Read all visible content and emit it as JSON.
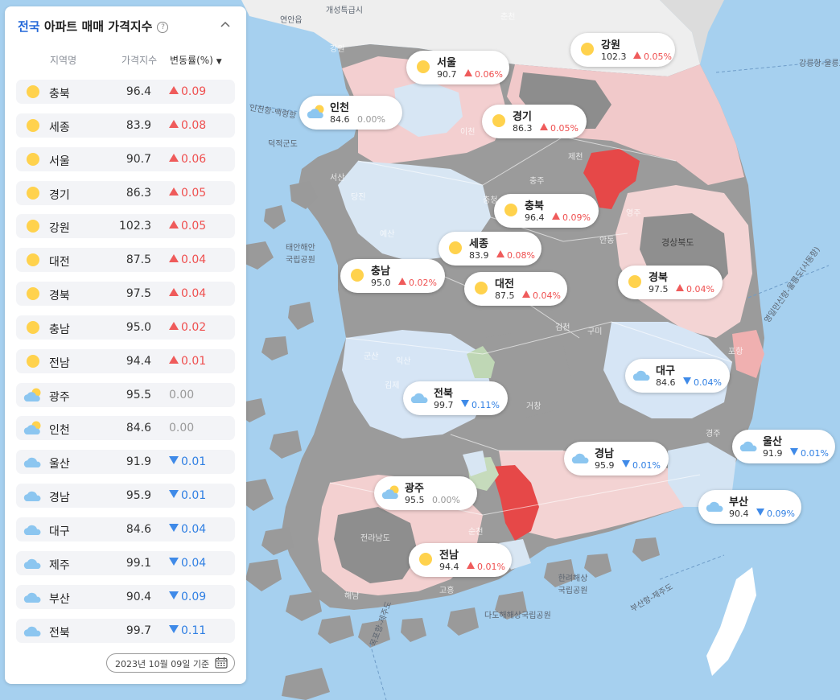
{
  "panel": {
    "title_prefix": "전국",
    "title_rest": " 아파트 매매 가격지수",
    "columns": {
      "region": "지역명",
      "index": "가격지수",
      "change": "변동률(%)"
    },
    "base_date": "2023년 10월 09일 기준",
    "rows": [
      {
        "name": "충북",
        "index": "96.4",
        "change": "0.09",
        "dir": "up",
        "weather": "sun-icon"
      },
      {
        "name": "세종",
        "index": "83.9",
        "change": "0.08",
        "dir": "up",
        "weather": "sun-icon"
      },
      {
        "name": "서울",
        "index": "90.7",
        "change": "0.06",
        "dir": "up",
        "weather": "sun-icon"
      },
      {
        "name": "경기",
        "index": "86.3",
        "change": "0.05",
        "dir": "up",
        "weather": "sun-icon"
      },
      {
        "name": "강원",
        "index": "102.3",
        "change": "0.05",
        "dir": "up",
        "weather": "sun-icon"
      },
      {
        "name": "대전",
        "index": "87.5",
        "change": "0.04",
        "dir": "up",
        "weather": "sun-icon"
      },
      {
        "name": "경북",
        "index": "97.5",
        "change": "0.04",
        "dir": "up",
        "weather": "sun-icon"
      },
      {
        "name": "충남",
        "index": "95.0",
        "change": "0.02",
        "dir": "up",
        "weather": "sun-icon"
      },
      {
        "name": "전남",
        "index": "94.4",
        "change": "0.01",
        "dir": "up",
        "weather": "sun-icon"
      },
      {
        "name": "광주",
        "index": "95.5",
        "change": "0.00",
        "dir": "flat",
        "weather": "sun-cloud-icon"
      },
      {
        "name": "인천",
        "index": "84.6",
        "change": "0.00",
        "dir": "flat",
        "weather": "sun-cloud-icon"
      },
      {
        "name": "울산",
        "index": "91.9",
        "change": "0.01",
        "dir": "down",
        "weather": "cloud-icon"
      },
      {
        "name": "경남",
        "index": "95.9",
        "change": "0.01",
        "dir": "down",
        "weather": "cloud-icon"
      },
      {
        "name": "대구",
        "index": "84.6",
        "change": "0.04",
        "dir": "down",
        "weather": "cloud-icon"
      },
      {
        "name": "제주",
        "index": "99.1",
        "change": "0.04",
        "dir": "down",
        "weather": "cloud-icon"
      },
      {
        "name": "부산",
        "index": "90.4",
        "change": "0.09",
        "dir": "down",
        "weather": "cloud-icon"
      },
      {
        "name": "전북",
        "index": "99.7",
        "change": "0.11",
        "dir": "down",
        "weather": "cloud-icon"
      }
    ]
  },
  "map_labels": [
    {
      "name": "강원",
      "index": "102.3",
      "change": "0.05%",
      "dir": "up",
      "weather": "sun-icon"
    },
    {
      "name": "서울",
      "index": "90.7",
      "change": "0.06%",
      "dir": "up",
      "weather": "sun-icon"
    },
    {
      "name": "인천",
      "index": "84.6",
      "change": "0.00%",
      "dir": "flat",
      "weather": "sun-cloud-icon"
    },
    {
      "name": "경기",
      "index": "86.3",
      "change": "0.05%",
      "dir": "up",
      "weather": "sun-icon"
    },
    {
      "name": "충북",
      "index": "96.4",
      "change": "0.09%",
      "dir": "up",
      "weather": "sun-icon"
    },
    {
      "name": "세종",
      "index": "83.9",
      "change": "0.08%",
      "dir": "up",
      "weather": "sun-icon"
    },
    {
      "name": "충남",
      "index": "95.0",
      "change": "0.02%",
      "dir": "up",
      "weather": "sun-icon"
    },
    {
      "name": "대전",
      "index": "87.5",
      "change": "0.04%",
      "dir": "up",
      "weather": "sun-icon"
    },
    {
      "name": "경북",
      "index": "97.5",
      "change": "0.04%",
      "dir": "up",
      "weather": "sun-icon"
    },
    {
      "name": "대구",
      "index": "84.6",
      "change": "0.04%",
      "dir": "down",
      "weather": "cloud-icon"
    },
    {
      "name": "전북",
      "index": "99.7",
      "change": "0.11%",
      "dir": "down",
      "weather": "cloud-icon"
    },
    {
      "name": "울산",
      "index": "91.9",
      "change": "0.01%",
      "dir": "down",
      "weather": "cloud-icon"
    },
    {
      "name": "경남",
      "index": "95.9",
      "change": "0.01%",
      "dir": "down",
      "weather": "cloud-icon"
    },
    {
      "name": "광주",
      "index": "95.5",
      "change": "0.00%",
      "dir": "flat",
      "weather": "sun-cloud-icon"
    },
    {
      "name": "부산",
      "index": "90.4",
      "change": "0.09%",
      "dir": "down",
      "weather": "cloud-icon"
    },
    {
      "name": "전남",
      "index": "94.4",
      "change": "0.01%",
      "dir": "up",
      "weather": "sun-icon"
    }
  ],
  "places": {
    "yeonan": "연안읍",
    "kaesong": "개성특급시",
    "dokjeok": "덕적군도",
    "taean": "태안해안\n국립공원",
    "gangneung_rd": "강릉항-울릉도",
    "gyeongsang": "경상북도",
    "ulleung_route": "영일만신항-울릉도(사동항)",
    "busan_jeju": "부산항-제주도",
    "hallyeo": "한려해상\n국립공원",
    "dadohae": "다도해해상국립공원",
    "dadohae2": "다도해해상\n국립공원",
    "incheon_route": "인천항-백령항",
    "jeju_route": "목포항-제주도",
    "chuncheon": "춘천",
    "seosan": "서산",
    "dangjin": "당진",
    "yesan": "예산",
    "gunsan": "군산",
    "iksan": "익산",
    "gimje": "김제",
    "gimcheon": "김천",
    "gumi": "구미",
    "geochang": "거창",
    "suncheon": "순천",
    "goheung": "고흥",
    "haenam": "해남",
    "pohang": "포항",
    "gyeongju": "경주",
    "yeongju": "영주",
    "andong": "안동",
    "jecheon": "제천",
    "chungju": "충주",
    "icheon": "이천",
    "chungcheong": "충청",
    "jeolla": "전라남도",
    "gangwon_area": "강원"
  },
  "colors": {
    "sea": "#a6d0ef",
    "land_gray": "#9a9a9a",
    "land_dark": "#8c8c8c",
    "land_pink": "#f5d0d0",
    "land_lightblue": "#d6e6f5",
    "hot_red": "#e74a4a",
    "up": "#ef4f4f",
    "down": "#2f7fe3",
    "accent": "#2468d8"
  }
}
